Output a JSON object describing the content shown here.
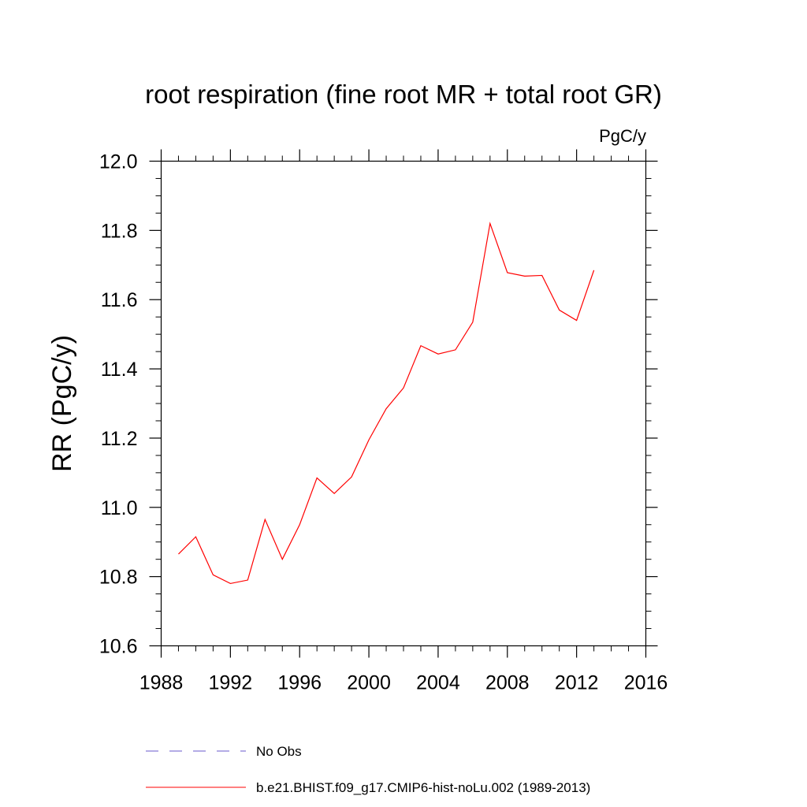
{
  "chart_data": {
    "type": "line",
    "title": "root respiration (fine root MR + total root GR)",
    "units": "PgC/y",
    "ylabel": "RR  (PgC/y)",
    "xlabel": "",
    "xlim": [
      1988,
      2016
    ],
    "ylim": [
      10.6,
      12.0
    ],
    "x_ticks": [
      "1988",
      "1992",
      "1996",
      "2000",
      "2004",
      "2008",
      "2012",
      "2016"
    ],
    "y_ticks": [
      "10.6",
      "10.8",
      "11.0",
      "11.2",
      "11.4",
      "11.6",
      "11.8",
      "12.0"
    ],
    "grid": false,
    "legend_position": "bottom",
    "series": [
      {
        "name": "b.e21.BHIST.f09_g17.CMIP6-hist-noLu.002 (1989-2013)",
        "color": "#ff0000",
        "style": "solid",
        "x": [
          1989,
          1990,
          1991,
          1992,
          1993,
          1994,
          1995,
          1996,
          1997,
          1998,
          1999,
          2000,
          2001,
          2002,
          2003,
          2004,
          2005,
          2006,
          2007,
          2008,
          2009,
          2010,
          2011,
          2012,
          2013
        ],
        "y": [
          10.865,
          10.915,
          10.805,
          10.78,
          10.79,
          10.965,
          10.85,
          10.95,
          11.085,
          11.04,
          11.088,
          11.195,
          11.285,
          11.345,
          11.467,
          11.443,
          11.455,
          11.535,
          11.82,
          11.678,
          11.668,
          11.67,
          11.57,
          11.54,
          11.685
        ]
      }
    ],
    "legend": [
      {
        "label": "No Obs",
        "color": "#6a5acd",
        "style": "dashed"
      },
      {
        "label": "b.e21.BHIST.f09_g17.CMIP6-hist-noLu.002 (1989-2013)",
        "color": "#ff0000",
        "style": "solid"
      }
    ]
  }
}
